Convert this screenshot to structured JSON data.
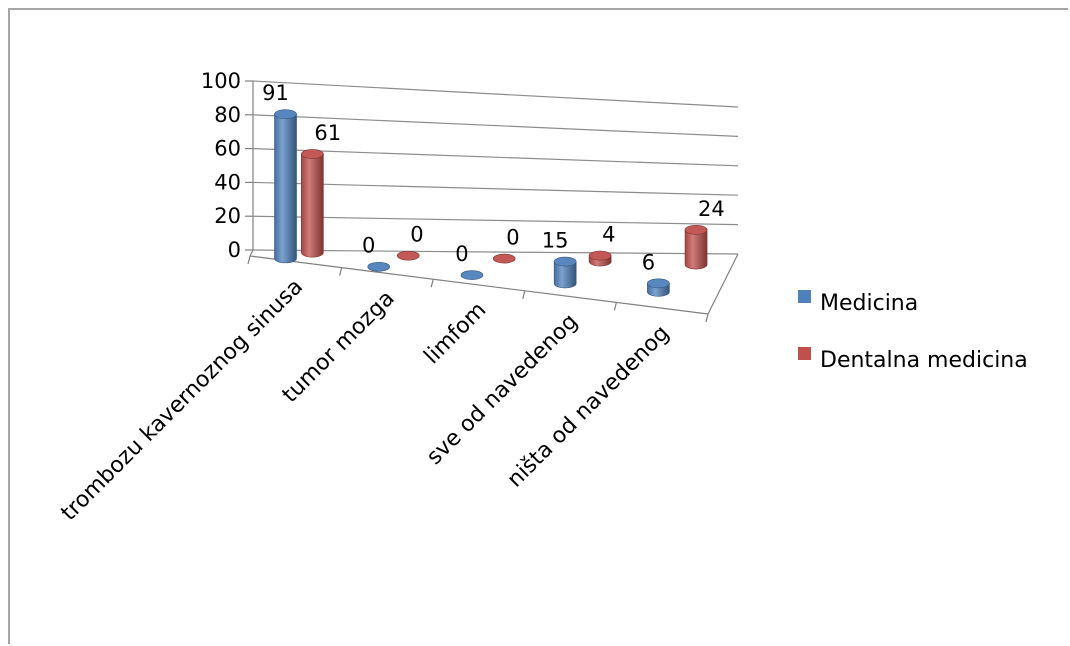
{
  "chart_data": {
    "type": "bar",
    "categories": [
      "trombozu kavernoznog sinusa",
      "tumor mozga",
      "limfom",
      "sve od navedenog",
      "ništa od navedenog"
    ],
    "series": [
      {
        "name": "Medicina",
        "values": [
          91,
          0,
          0,
          15,
          6
        ],
        "color": "#4f81bd"
      },
      {
        "name": "Dentalna medicina",
        "values": [
          61,
          0,
          0,
          4,
          24
        ],
        "color": "#c0504d"
      }
    ],
    "yticks": [
      "0",
      "20",
      "40",
      "60",
      "80",
      "100"
    ],
    "ylim": [
      0,
      100
    ],
    "grid": true,
    "legend": "right",
    "style": "3d-cylinder"
  }
}
